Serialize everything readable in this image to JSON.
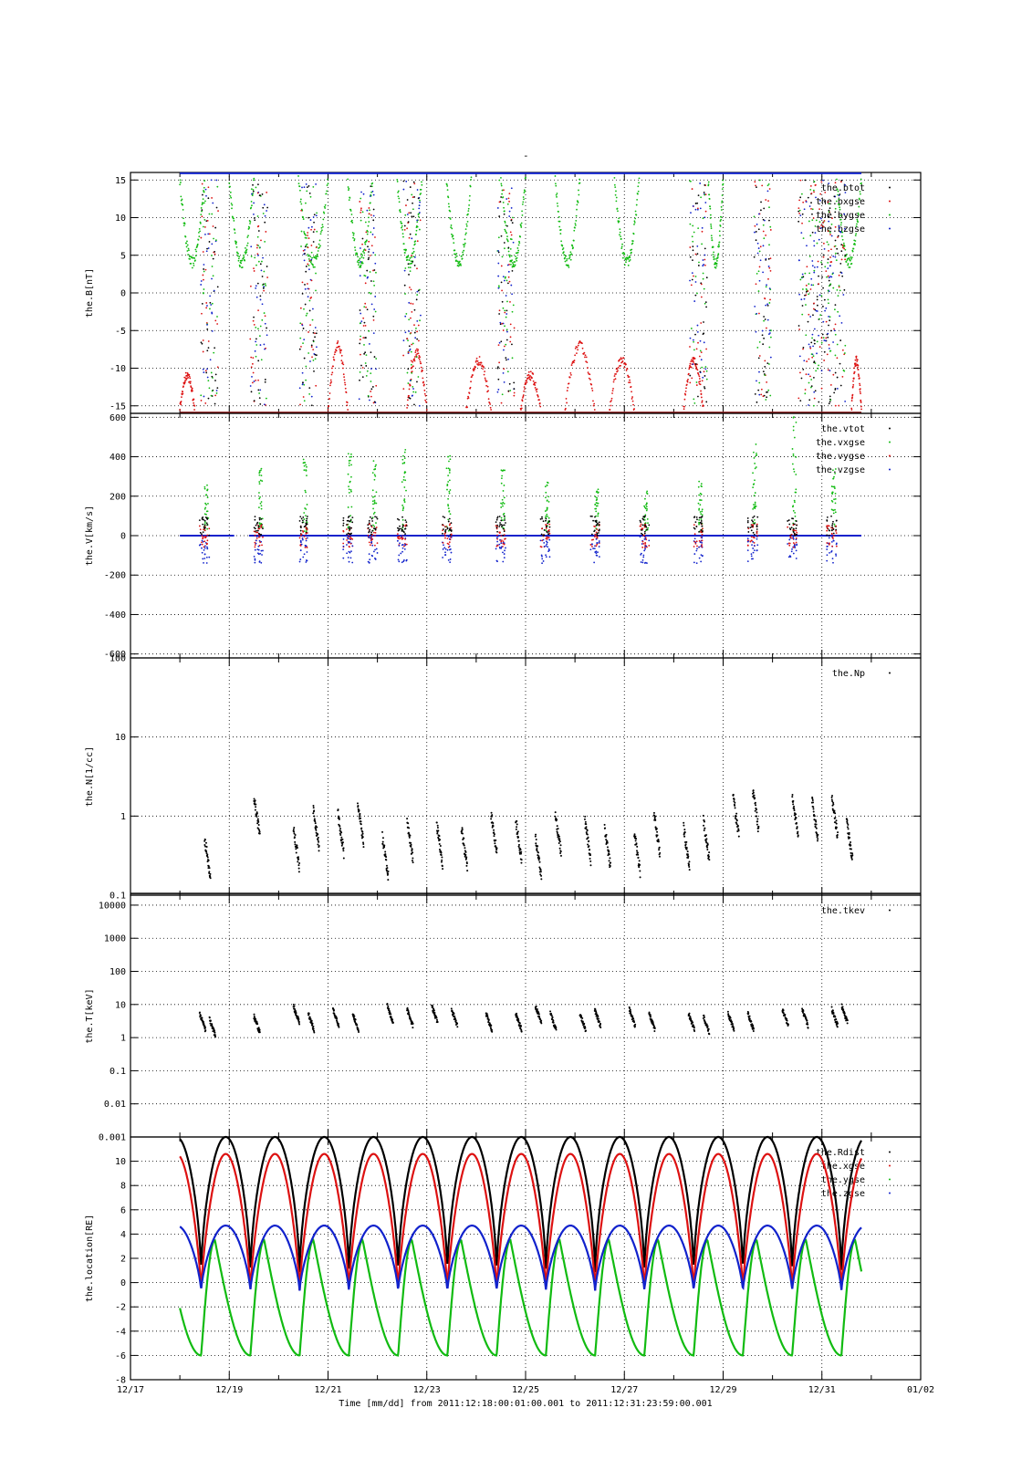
{
  "page": {
    "top_mark": "-"
  },
  "time_axis": {
    "range": [
      "12/17",
      "01/02"
    ],
    "tick_labels": [
      "12/17",
      "12/19",
      "12/21",
      "12/23",
      "12/25",
      "12/27",
      "12/29",
      "12/31",
      "01/02"
    ],
    "xlabel": "Time [mm/dd]  from 2011:12:18:00:01:00.001  to  2011:12:31:23:59:00.001"
  },
  "chart_data": [
    {
      "type": "scatter",
      "id": "B",
      "ylabel": "the.B[nT]",
      "scale": "linear",
      "ylim": [
        -16,
        16
      ],
      "yticks": [
        "15",
        "10",
        "5",
        "0",
        "-5",
        "-10",
        "-15"
      ],
      "grid": true,
      "legend_position": "top-right",
      "series": [
        {
          "name": "the.btot",
          "color": "#000000"
        },
        {
          "name": "the.bxgse",
          "color": "#dd1111"
        },
        {
          "name": "the.bygse",
          "color": "#11bb11"
        },
        {
          "name": "the.bzgse",
          "color": "#1122cc"
        }
      ],
      "notes": "values clipped at ±16 nT; btot saturates at the top, bxgse dips to about -7 to -13 between crossings"
    },
    {
      "type": "scatter",
      "id": "V",
      "ylabel": "the.V[km/s]",
      "scale": "linear",
      "ylim": [
        -620,
        620
      ],
      "yticks": [
        "600",
        "400",
        "200",
        "0",
        "-200",
        "-400",
        "-600"
      ],
      "grid": true,
      "legend_position": "top-right",
      "series": [
        {
          "name": "the.vtot",
          "color": "#000000"
        },
        {
          "name": "the.vxgse",
          "color": "#11bb11"
        },
        {
          "name": "the.vygse",
          "color": "#dd1111"
        },
        {
          "name": "the.vzgse",
          "color": "#1122cc"
        }
      ],
      "bursts_days": [
        18.5,
        19.6,
        20.5,
        21.4,
        21.9,
        22.5,
        23.4,
        24.5,
        25.4,
        26.4,
        27.4,
        28.5,
        29.6,
        30.4,
        31.2
      ],
      "bursts_peak_kms": [
        280,
        320,
        370,
        410,
        380,
        420,
        400,
        320,
        260,
        230,
        210,
        260,
        450,
        600,
        320
      ]
    },
    {
      "type": "scatter",
      "id": "N",
      "ylabel": "the.N[1/cc]",
      "scale": "log",
      "ylim": [
        0.1,
        100
      ],
      "yticks": [
        "100",
        "10",
        "1",
        "0.1"
      ],
      "grid": true,
      "legend_position": "top-right",
      "series": [
        {
          "name": "the.Np",
          "color": "#000000"
        }
      ],
      "bursts_days": [
        18.5,
        19.5,
        20.3,
        20.7,
        21.2,
        21.6,
        22.1,
        22.6,
        23.2,
        23.7,
        24.3,
        24.8,
        25.2,
        25.6,
        26.2,
        26.6,
        27.2,
        27.6,
        28.2,
        28.6,
        29.2,
        29.6,
        30.4,
        30.8,
        31.2,
        31.5
      ],
      "bursts_density": [
        0.3,
        1.0,
        0.4,
        0.7,
        0.6,
        0.8,
        0.3,
        0.5,
        0.45,
        0.4,
        0.6,
        0.5,
        0.3,
        0.6,
        0.5,
        0.4,
        0.35,
        0.6,
        0.4,
        0.5,
        1.0,
        1.2,
        1.0,
        0.9,
        1.0,
        0.5
      ]
    },
    {
      "type": "scatter",
      "id": "T",
      "ylabel": "the.T[keV]",
      "scale": "log",
      "ylim": [
        0.001,
        20000
      ],
      "yticks": [
        "10000",
        "1000",
        "100",
        "10",
        "1",
        "0.1",
        "0.01",
        "0.001"
      ],
      "grid": true,
      "legend_position": "top-right",
      "series": [
        {
          "name": "the.tkev",
          "color": "#000000"
        }
      ],
      "bursts_days": [
        18.4,
        18.6,
        19.5,
        20.3,
        20.6,
        21.1,
        21.5,
        22.2,
        22.6,
        23.1,
        23.5,
        24.2,
        24.8,
        25.2,
        25.5,
        26.1,
        26.4,
        27.1,
        27.5,
        28.3,
        28.6,
        29.1,
        29.5,
        30.2,
        30.6,
        31.2,
        31.4
      ],
      "bursts_kev": [
        3,
        2,
        2.5,
        5,
        3,
        4,
        3,
        5,
        4,
        5,
        4,
        3,
        3,
        5,
        3,
        3,
        4,
        4,
        3,
        3,
        2.5,
        3,
        3,
        4,
        4,
        4,
        5
      ]
    },
    {
      "type": "line",
      "id": "location",
      "ylabel": "the.location[RE]",
      "scale": "linear",
      "ylim": [
        -8,
        12
      ],
      "yticks": [
        "10",
        "8",
        "6",
        "4",
        "2",
        "0",
        "-2",
        "-4",
        "-6",
        "-8"
      ],
      "grid": true,
      "legend_position": "top-right",
      "orbit_period_days": 0.9973,
      "series": [
        {
          "name": "the.Rdist",
          "color": "#000000",
          "min": 0.7,
          "max": 12.0
        },
        {
          "name": "the.xgse",
          "color": "#dd1111",
          "min": -0.7,
          "max": 10.6
        },
        {
          "name": "the.ygse",
          "color": "#11bb11",
          "min": -6.0,
          "max": 3.5
        },
        {
          "name": "the.zgse",
          "color": "#1122cc",
          "min": -0.7,
          "max": 4.7
        }
      ]
    }
  ]
}
